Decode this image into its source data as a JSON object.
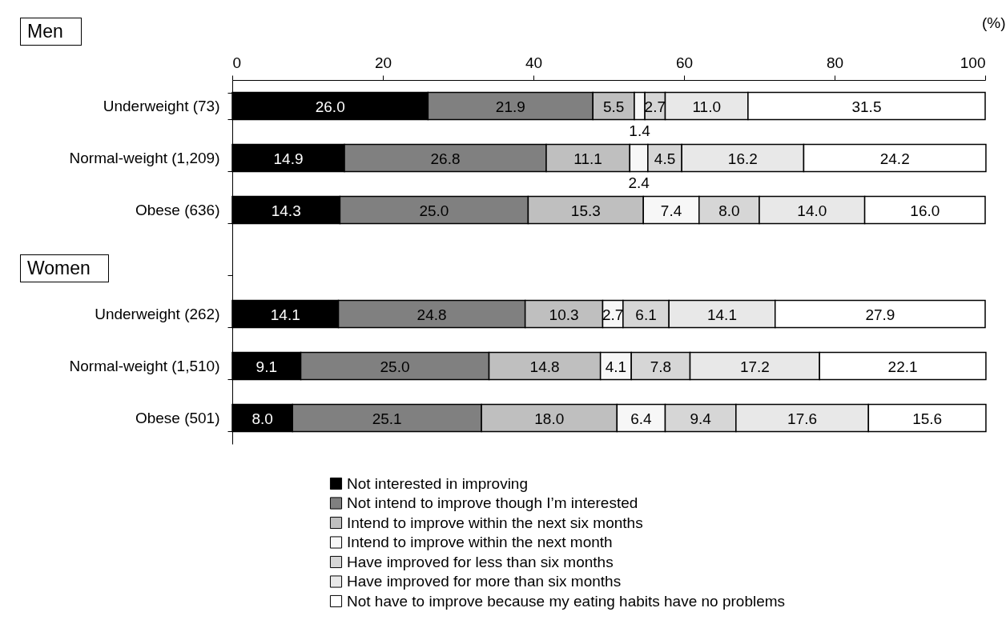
{
  "chart_data": {
    "type": "bar",
    "orientation": "horizontal",
    "stacked": true,
    "legend": "bottom",
    "grid": false,
    "xlabel": "(%)",
    "annotations": [
      "Men",
      "Women"
    ],
    "categories": [
      "Underweight (73)",
      "Normal-weight (1,209)",
      "Obese (636)",
      null,
      "Underweight (262)",
      "Normal-weight (1,510)",
      "Obese (501)"
    ],
    "xlim": [
      0,
      100
    ],
    "xticks": [
      0,
      20,
      40,
      60,
      80,
      100
    ],
    "series": [
      {
        "name": "Not interested in improving",
        "color": "#000000",
        "values": [
          26.0,
          14.9,
          14.3,
          null,
          14.1,
          9.1,
          8.0
        ],
        "value_labels": [
          "26.0",
          "14.9",
          "14.3",
          null,
          "14.1",
          "9.1",
          "8.0"
        ]
      },
      {
        "name": "Not intend to improve though I’m interested",
        "color": "#808080",
        "values": [
          21.9,
          26.8,
          25.0,
          null,
          24.8,
          25.0,
          25.1
        ],
        "value_labels": [
          "21.9",
          "26.8",
          "25.0",
          null,
          "24.8",
          "25.0",
          "25.1"
        ]
      },
      {
        "name": "Intend to improve within the next six months",
        "color": "#bfbfbf",
        "values": [
          5.5,
          11.1,
          15.3,
          null,
          10.3,
          14.8,
          18.0
        ],
        "value_labels": [
          "5.5",
          "11.1",
          "15.3",
          null,
          "10.3",
          "14.8",
          "18.0"
        ]
      },
      {
        "name": "Intend to improve within the next month",
        "color": "#f7f7f7",
        "values": [
          1.4,
          2.4,
          7.4,
          null,
          2.7,
          4.1,
          6.4
        ],
        "value_labels": [
          "1.4",
          "2.4",
          "7.4",
          null,
          "2.7",
          "4.1",
          "6.4"
        ]
      },
      {
        "name": "Have improved for less than six months",
        "color": "#d6d6d6",
        "values": [
          2.7,
          4.5,
          8.0,
          null,
          6.1,
          7.8,
          9.4
        ],
        "value_labels": [
          "2.7",
          "4.5",
          "8.0",
          null,
          "6.1",
          "7.8",
          "9.4"
        ]
      },
      {
        "name": "Have improved for more than six months",
        "color": "#e8e8e8",
        "values": [
          11.0,
          16.2,
          14.0,
          null,
          14.1,
          17.2,
          17.6
        ],
        "value_labels": [
          "11.0",
          "16.2",
          "14.0",
          null,
          "14.1",
          "17.2",
          "17.6"
        ]
      },
      {
        "name": "Not have to improve because my eating habits have no problems",
        "color": "#ffffff",
        "values": [
          31.5,
          24.2,
          16.0,
          null,
          27.9,
          22.1,
          15.6
        ],
        "value_labels": [
          "31.5",
          "24.2",
          "16.0",
          null,
          "27.9",
          "22.1",
          "15.6"
        ]
      }
    ]
  }
}
